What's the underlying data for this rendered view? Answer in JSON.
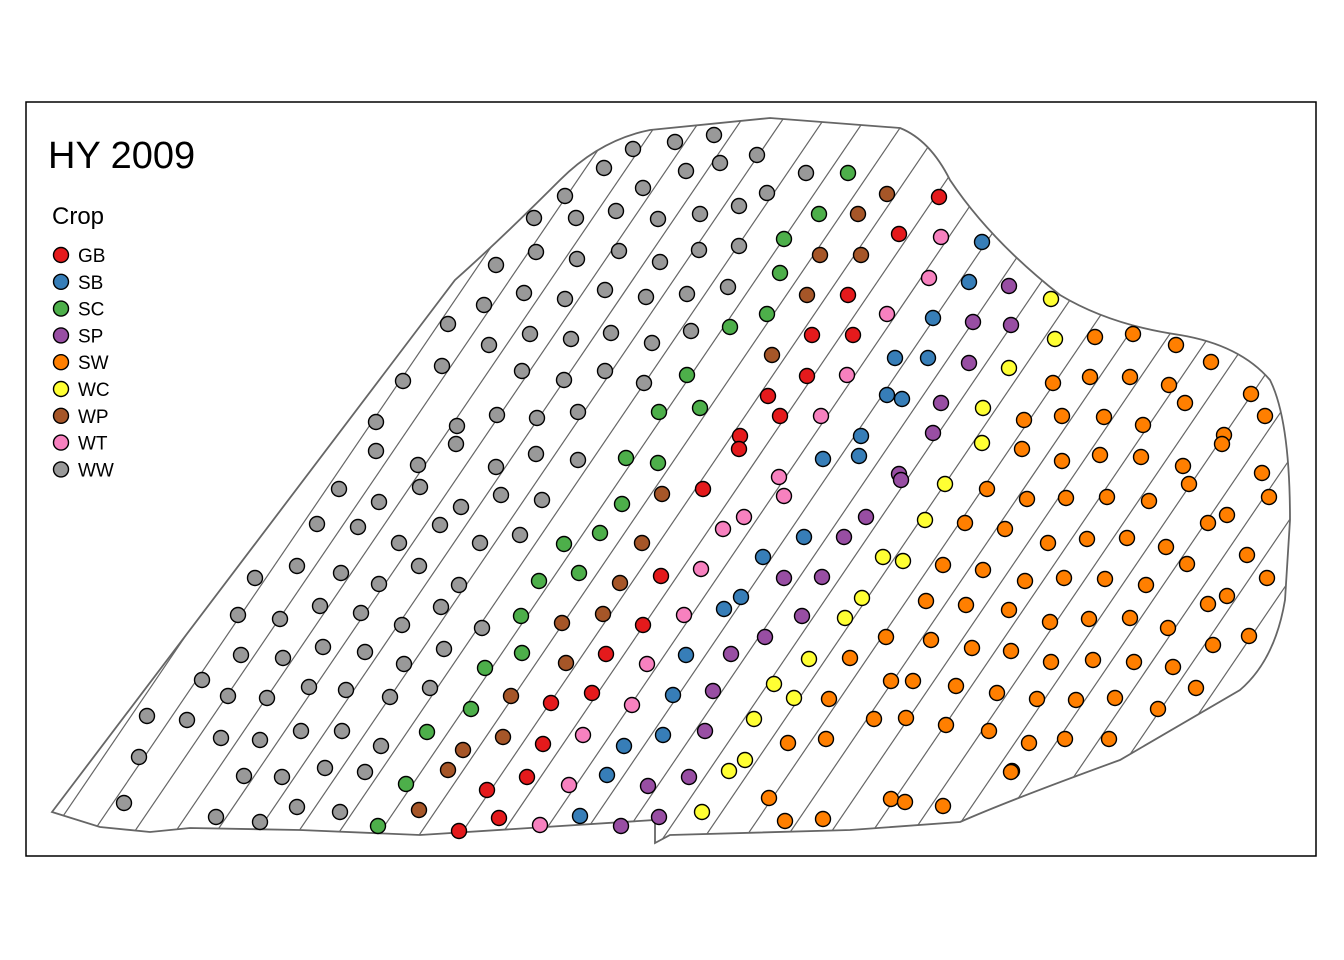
{
  "title": "HY 2009",
  "legend": {
    "title": "Crop",
    "items": [
      {
        "code": "GB",
        "color": "#e41a1c"
      },
      {
        "code": "SB",
        "color": "#377eb8"
      },
      {
        "code": "SC",
        "color": "#4daf4a"
      },
      {
        "code": "SP",
        "color": "#984ea3"
      },
      {
        "code": "SW",
        "color": "#ff7f00"
      },
      {
        "code": "WC",
        "color": "#ffff33"
      },
      {
        "code": "WP",
        "color": "#a65628"
      },
      {
        "code": "WT",
        "color": "#f781bf"
      },
      {
        "code": "WW",
        "color": "#999999"
      }
    ]
  }
}
